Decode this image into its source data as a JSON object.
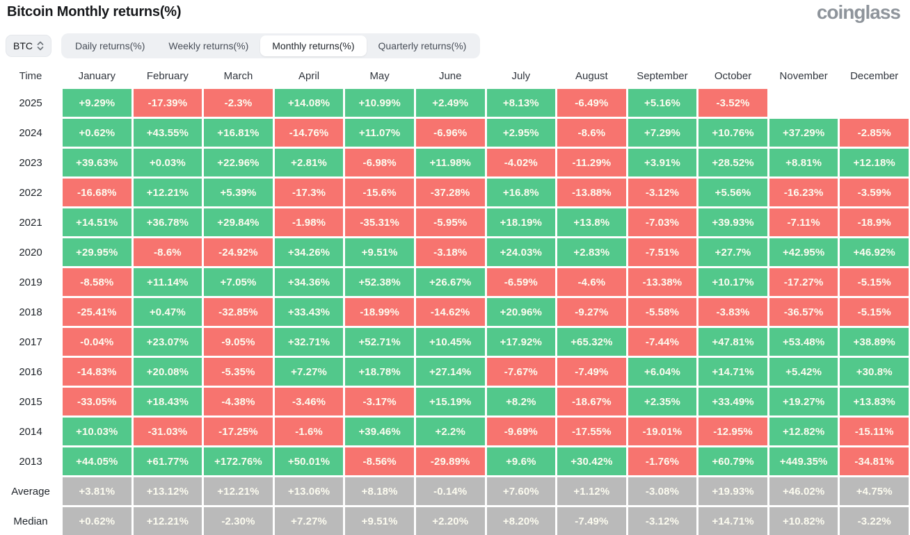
{
  "page": {
    "title": "Bitcoin Monthly returns(%)",
    "logo": "coinglass"
  },
  "controls": {
    "symbol_select": {
      "value": "BTC"
    },
    "tabs": [
      {
        "key": "daily",
        "label": "Daily returns(%)",
        "active": false
      },
      {
        "key": "weekly",
        "label": "Weekly returns(%)",
        "active": false
      },
      {
        "key": "monthly",
        "label": "Monthly returns(%)",
        "active": true
      },
      {
        "key": "quarterly",
        "label": "Quarterly returns(%)",
        "active": false
      }
    ]
  },
  "colors": {
    "positive": "#52c88b",
    "negative": "#f7746f",
    "summary": "#bababa"
  },
  "chart_data": {
    "type": "table",
    "time_header": "Time",
    "columns": [
      "January",
      "February",
      "March",
      "April",
      "May",
      "June",
      "July",
      "August",
      "September",
      "October",
      "November",
      "December"
    ],
    "rows": [
      {
        "label": "2025",
        "summary": false,
        "values": [
          "+9.29%",
          "-17.39%",
          "-2.3%",
          "+14.08%",
          "+10.99%",
          "+2.49%",
          "+8.13%",
          "-6.49%",
          "+5.16%",
          "-3.52%",
          "",
          ""
        ]
      },
      {
        "label": "2024",
        "summary": false,
        "values": [
          "+0.62%",
          "+43.55%",
          "+16.81%",
          "-14.76%",
          "+11.07%",
          "-6.96%",
          "+2.95%",
          "-8.6%",
          "+7.29%",
          "+10.76%",
          "+37.29%",
          "-2.85%"
        ]
      },
      {
        "label": "2023",
        "summary": false,
        "values": [
          "+39.63%",
          "+0.03%",
          "+22.96%",
          "+2.81%",
          "-6.98%",
          "+11.98%",
          "-4.02%",
          "-11.29%",
          "+3.91%",
          "+28.52%",
          "+8.81%",
          "+12.18%"
        ]
      },
      {
        "label": "2022",
        "summary": false,
        "values": [
          "-16.68%",
          "+12.21%",
          "+5.39%",
          "-17.3%",
          "-15.6%",
          "-37.28%",
          "+16.8%",
          "-13.88%",
          "-3.12%",
          "+5.56%",
          "-16.23%",
          "-3.59%"
        ]
      },
      {
        "label": "2021",
        "summary": false,
        "values": [
          "+14.51%",
          "+36.78%",
          "+29.84%",
          "-1.98%",
          "-35.31%",
          "-5.95%",
          "+18.19%",
          "+13.8%",
          "-7.03%",
          "+39.93%",
          "-7.11%",
          "-18.9%"
        ]
      },
      {
        "label": "2020",
        "summary": false,
        "values": [
          "+29.95%",
          "-8.6%",
          "-24.92%",
          "+34.26%",
          "+9.51%",
          "-3.18%",
          "+24.03%",
          "+2.83%",
          "-7.51%",
          "+27.7%",
          "+42.95%",
          "+46.92%"
        ]
      },
      {
        "label": "2019",
        "summary": false,
        "values": [
          "-8.58%",
          "+11.14%",
          "+7.05%",
          "+34.36%",
          "+52.38%",
          "+26.67%",
          "-6.59%",
          "-4.6%",
          "-13.38%",
          "+10.17%",
          "-17.27%",
          "-5.15%"
        ]
      },
      {
        "label": "2018",
        "summary": false,
        "values": [
          "-25.41%",
          "+0.47%",
          "-32.85%",
          "+33.43%",
          "-18.99%",
          "-14.62%",
          "+20.96%",
          "-9.27%",
          "-5.58%",
          "-3.83%",
          "-36.57%",
          "-5.15%"
        ]
      },
      {
        "label": "2017",
        "summary": false,
        "values": [
          "-0.04%",
          "+23.07%",
          "-9.05%",
          "+32.71%",
          "+52.71%",
          "+10.45%",
          "+17.92%",
          "+65.32%",
          "-7.44%",
          "+47.81%",
          "+53.48%",
          "+38.89%"
        ]
      },
      {
        "label": "2016",
        "summary": false,
        "values": [
          "-14.83%",
          "+20.08%",
          "-5.35%",
          "+7.27%",
          "+18.78%",
          "+27.14%",
          "-7.67%",
          "-7.49%",
          "+6.04%",
          "+14.71%",
          "+5.42%",
          "+30.8%"
        ]
      },
      {
        "label": "2015",
        "summary": false,
        "values": [
          "-33.05%",
          "+18.43%",
          "-4.38%",
          "-3.46%",
          "-3.17%",
          "+15.19%",
          "+8.2%",
          "-18.67%",
          "+2.35%",
          "+33.49%",
          "+19.27%",
          "+13.83%"
        ]
      },
      {
        "label": "2014",
        "summary": false,
        "values": [
          "+10.03%",
          "-31.03%",
          "-17.25%",
          "-1.6%",
          "+39.46%",
          "+2.2%",
          "-9.69%",
          "-17.55%",
          "-19.01%",
          "-12.95%",
          "+12.82%",
          "-15.11%"
        ]
      },
      {
        "label": "2013",
        "summary": false,
        "values": [
          "+44.05%",
          "+61.77%",
          "+172.76%",
          "+50.01%",
          "-8.56%",
          "-29.89%",
          "+9.6%",
          "+30.42%",
          "-1.76%",
          "+60.79%",
          "+449.35%",
          "-34.81%"
        ]
      },
      {
        "label": "Average",
        "summary": true,
        "values": [
          "+3.81%",
          "+13.12%",
          "+12.21%",
          "+13.06%",
          "+8.18%",
          "-0.14%",
          "+7.60%",
          "+1.12%",
          "-3.08%",
          "+19.93%",
          "+46.02%",
          "+4.75%"
        ]
      },
      {
        "label": "Median",
        "summary": true,
        "values": [
          "+0.62%",
          "+12.21%",
          "-2.30%",
          "+7.27%",
          "+9.51%",
          "+2.20%",
          "+8.20%",
          "-7.49%",
          "-3.12%",
          "+14.71%",
          "+10.82%",
          "-3.22%"
        ]
      }
    ]
  }
}
